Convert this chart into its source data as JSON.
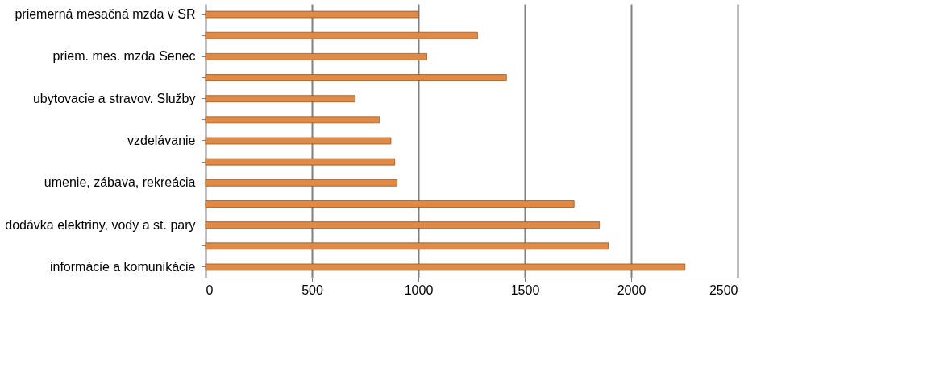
{
  "chart_data": {
    "type": "bar",
    "orientation": "horizontal",
    "categories": [
      "priemerná mesačná mzda v SR",
      null,
      "priem. mes. mzda Senec",
      null,
      "ubytovacie a stravov. Služby",
      null,
      "vzdelávanie",
      null,
      "umenie, zábava, rekreácia",
      null,
      "dodávka elektriny, vody a st. pary",
      null,
      "informácie a komunikácie"
    ],
    "values": [
      1000,
      1278,
      1040,
      1414,
      703,
      817,
      871,
      889,
      900,
      1732,
      1851,
      1893,
      2253
    ],
    "color": "#e08a45",
    "xlim": [
      0,
      2500
    ],
    "xticks": [
      0,
      500,
      1000,
      1500,
      2000,
      2500
    ],
    "grid": "x"
  }
}
